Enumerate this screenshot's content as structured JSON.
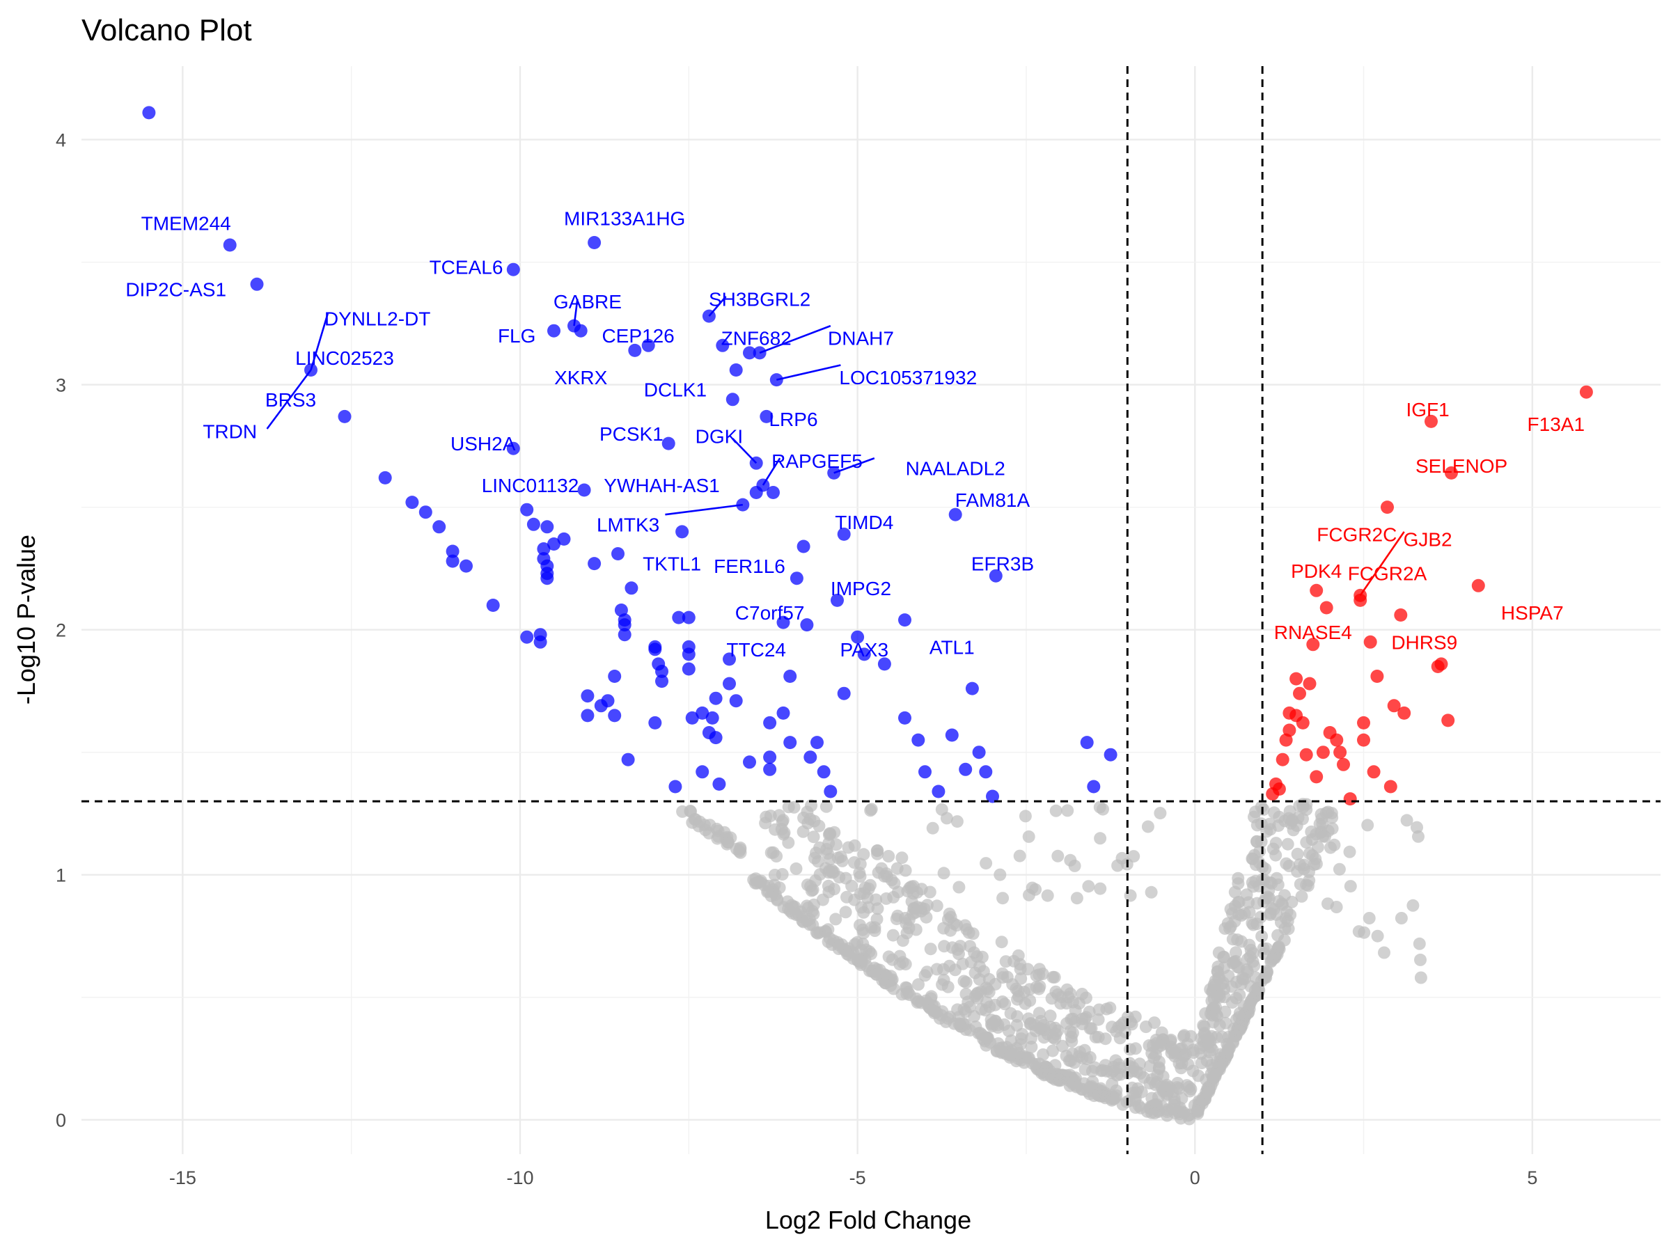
{
  "chart_data": {
    "type": "scatter",
    "title": "Volcano Plot",
    "xlabel": "Log2 Fold Change",
    "ylabel": "-Log10 P-value",
    "xlim": [
      -16.5,
      6.9
    ],
    "ylim": [
      -0.14,
      4.3
    ],
    "x_ticks": [
      -15,
      -10,
      -5,
      0,
      5
    ],
    "y_ticks": [
      0,
      1,
      2,
      3,
      4
    ],
    "grid": true,
    "legend": "none",
    "thresholds": {
      "fold_change": [
        -1,
        1
      ],
      "p_value": 1.3
    },
    "colors": {
      "down": "#0000ff",
      "up": "#ff0000",
      "ns": "#bebebe",
      "threshold_line": "#000000"
    },
    "series": [
      {
        "name": "",
        "color": "#0000ff",
        "points": [
          [
            -15.5,
            4.11
          ],
          [
            -14.3,
            3.57
          ],
          [
            -13.9,
            3.41
          ],
          [
            -13.1,
            3.06
          ],
          [
            -12.6,
            2.87
          ],
          [
            -12.0,
            2.62
          ],
          [
            -11.6,
            2.52
          ],
          [
            -11.4,
            2.48
          ],
          [
            -11.2,
            2.42
          ],
          [
            -11.0,
            2.32
          ],
          [
            -11.0,
            2.28
          ],
          [
            -10.8,
            2.26
          ],
          [
            -10.4,
            2.1
          ],
          [
            -10.1,
            3.47
          ],
          [
            -10.1,
            2.74
          ],
          [
            -9.9,
            2.49
          ],
          [
            -9.9,
            1.97
          ],
          [
            -9.8,
            2.43
          ],
          [
            -9.7,
            1.98
          ],
          [
            -9.7,
            1.95
          ],
          [
            -9.65,
            2.33
          ],
          [
            -9.65,
            2.29
          ],
          [
            -9.6,
            2.26
          ],
          [
            -9.6,
            2.23
          ],
          [
            -9.6,
            2.21
          ],
          [
            -9.6,
            2.42
          ],
          [
            -9.5,
            3.22
          ],
          [
            -9.5,
            2.35
          ],
          [
            -9.35,
            2.37
          ],
          [
            -9.2,
            3.24
          ],
          [
            -9.1,
            3.22
          ],
          [
            -9.05,
            2.57
          ],
          [
            -9.0,
            1.73
          ],
          [
            -9.0,
            1.65
          ],
          [
            -8.9,
            3.58
          ],
          [
            -8.9,
            2.27
          ],
          [
            -8.8,
            1.69
          ],
          [
            -8.7,
            1.71
          ],
          [
            -8.6,
            1.81
          ],
          [
            -8.6,
            1.65
          ],
          [
            -8.55,
            2.31
          ],
          [
            -8.5,
            2.08
          ],
          [
            -8.45,
            2.04
          ],
          [
            -8.45,
            2.02
          ],
          [
            -8.45,
            1.98
          ],
          [
            -8.4,
            1.47
          ],
          [
            -8.35,
            2.17
          ],
          [
            -8.3,
            3.14
          ],
          [
            -8.1,
            3.16
          ],
          [
            -8.0,
            1.93
          ],
          [
            -8.0,
            1.92
          ],
          [
            -8.0,
            1.62
          ],
          [
            -7.95,
            1.86
          ],
          [
            -7.9,
            1.83
          ],
          [
            -7.9,
            1.79
          ],
          [
            -7.8,
            2.76
          ],
          [
            -7.7,
            1.36
          ],
          [
            -7.65,
            2.05
          ],
          [
            -7.6,
            2.4
          ],
          [
            -7.5,
            2.05
          ],
          [
            -7.5,
            1.93
          ],
          [
            -7.5,
            1.9
          ],
          [
            -7.5,
            1.84
          ],
          [
            -7.45,
            1.64
          ],
          [
            -7.3,
            1.42
          ],
          [
            -7.3,
            1.66
          ],
          [
            -7.2,
            3.28
          ],
          [
            -7.2,
            1.58
          ],
          [
            -7.15,
            1.64
          ],
          [
            -7.1,
            1.72
          ],
          [
            -7.1,
            1.56
          ],
          [
            -7.05,
            1.37
          ],
          [
            -7.0,
            3.16
          ],
          [
            -6.9,
            1.88
          ],
          [
            -6.9,
            1.78
          ],
          [
            -6.85,
            2.94
          ],
          [
            -6.8,
            3.06
          ],
          [
            -6.8,
            1.71
          ],
          [
            -6.7,
            2.51
          ],
          [
            -6.6,
            3.13
          ],
          [
            -6.6,
            1.46
          ],
          [
            -6.5,
            2.68
          ],
          [
            -6.5,
            2.56
          ],
          [
            -6.45,
            3.13
          ],
          [
            -6.4,
            2.59
          ],
          [
            -6.35,
            2.87
          ],
          [
            -6.3,
            1.62
          ],
          [
            -6.3,
            1.48
          ],
          [
            -6.3,
            1.43
          ],
          [
            -6.25,
            2.56
          ],
          [
            -6.2,
            3.02
          ],
          [
            -6.1,
            2.03
          ],
          [
            -6.1,
            1.66
          ],
          [
            -6.0,
            1.81
          ],
          [
            -6.0,
            1.54
          ],
          [
            -5.9,
            2.21
          ],
          [
            -5.8,
            2.34
          ],
          [
            -5.75,
            2.02
          ],
          [
            -5.7,
            1.48
          ],
          [
            -5.6,
            1.54
          ],
          [
            -5.5,
            1.42
          ],
          [
            -5.4,
            1.34
          ],
          [
            -5.35,
            2.64
          ],
          [
            -5.3,
            2.12
          ],
          [
            -5.2,
            1.74
          ],
          [
            -5.2,
            2.39
          ],
          [
            -5.0,
            1.97
          ],
          [
            -4.9,
            1.9
          ],
          [
            -4.6,
            1.86
          ],
          [
            -4.3,
            2.04
          ],
          [
            -4.3,
            1.64
          ],
          [
            -4.1,
            1.55
          ],
          [
            -4.0,
            1.42
          ],
          [
            -3.8,
            1.34
          ],
          [
            -3.6,
            1.57
          ],
          [
            -3.55,
            2.47
          ],
          [
            -3.4,
            1.43
          ],
          [
            -3.3,
            1.76
          ],
          [
            -3.2,
            1.5
          ],
          [
            -3.1,
            1.42
          ],
          [
            -3.0,
            1.32
          ],
          [
            -2.95,
            2.22
          ],
          [
            -1.6,
            1.54
          ],
          [
            -1.5,
            1.36
          ],
          [
            -1.25,
            1.49
          ]
        ]
      },
      {
        "name": "",
        "color": "#ff0000",
        "points": [
          [
            1.15,
            1.33
          ],
          [
            1.2,
            1.37
          ],
          [
            1.25,
            1.35
          ],
          [
            1.3,
            1.47
          ],
          [
            1.35,
            1.55
          ],
          [
            1.4,
            1.59
          ],
          [
            1.4,
            1.66
          ],
          [
            1.5,
            1.8
          ],
          [
            1.5,
            1.65
          ],
          [
            1.55,
            1.74
          ],
          [
            1.6,
            1.62
          ],
          [
            1.65,
            1.49
          ],
          [
            1.7,
            1.78
          ],
          [
            1.75,
            1.94
          ],
          [
            1.8,
            2.16
          ],
          [
            1.8,
            1.4
          ],
          [
            1.9,
            1.5
          ],
          [
            1.95,
            2.09
          ],
          [
            2.0,
            1.58
          ],
          [
            2.1,
            1.55
          ],
          [
            2.15,
            1.5
          ],
          [
            2.2,
            1.45
          ],
          [
            2.3,
            1.31
          ],
          [
            2.45,
            2.14
          ],
          [
            2.45,
            2.12
          ],
          [
            2.5,
            1.62
          ],
          [
            2.5,
            1.55
          ],
          [
            2.6,
            1.95
          ],
          [
            2.65,
            1.42
          ],
          [
            2.7,
            1.81
          ],
          [
            2.85,
            2.5
          ],
          [
            2.9,
            1.36
          ],
          [
            2.95,
            1.69
          ],
          [
            3.05,
            2.06
          ],
          [
            3.1,
            1.66
          ],
          [
            3.5,
            2.85
          ],
          [
            3.6,
            1.85
          ],
          [
            3.65,
            1.86
          ],
          [
            3.75,
            1.63
          ],
          [
            3.8,
            2.64
          ],
          [
            4.2,
            2.18
          ],
          [
            5.8,
            2.97
          ]
        ]
      }
    ],
    "labels": [
      {
        "text": "TMEM244",
        "x": -14.3,
        "y": 3.57,
        "color": "#0000ff",
        "tx": -14.95,
        "ty": 3.66,
        "anchor": "middle"
      },
      {
        "text": "DIP2C-AS1",
        "x": -13.9,
        "y": 3.41,
        "color": "#0000ff",
        "tx": -15.1,
        "ty": 3.39,
        "anchor": "middle"
      },
      {
        "text": "DYNLL2-DT",
        "x": -13.1,
        "y": 3.06,
        "color": "#0000ff",
        "tx": -12.9,
        "ty": 3.27,
        "anchor": "start",
        "line": [
          -12.85,
          3.29
        ]
      },
      {
        "text": "LINC02523",
        "x": -13.1,
        "y": 3.06,
        "color": "#0000ff",
        "tx": -12.6,
        "ty": 3.11,
        "anchor": "middle"
      },
      {
        "text": "BRS3",
        "x": -13.1,
        "y": 3.06,
        "color": "#0000ff",
        "tx": -13.4,
        "ty": 2.94,
        "anchor": "middle"
      },
      {
        "text": "TRDN",
        "x": -13.1,
        "y": 3.06,
        "color": "#0000ff",
        "tx": -14.3,
        "ty": 2.81,
        "anchor": "middle",
        "line": [
          -13.75,
          2.82
        ]
      },
      {
        "text": "TCEAL6",
        "x": -10.1,
        "y": 3.47,
        "color": "#0000ff",
        "tx": -10.8,
        "ty": 3.48,
        "anchor": "middle"
      },
      {
        "text": "MIR133A1HG",
        "x": -8.9,
        "y": 3.58,
        "color": "#0000ff",
        "tx": -8.45,
        "ty": 3.68,
        "anchor": "middle"
      },
      {
        "text": "GABRE",
        "x": -9.2,
        "y": 3.24,
        "color": "#0000ff",
        "tx": -9.0,
        "ty": 3.34,
        "anchor": "middle",
        "line": [
          -9.15,
          3.35
        ]
      },
      {
        "text": "FLG",
        "x": -9.5,
        "y": 3.22,
        "color": "#0000ff",
        "tx": -10.05,
        "ty": 3.2,
        "anchor": "middle"
      },
      {
        "text": "CEP126",
        "x": -8.8,
        "y": 3.22,
        "color": "#0000ff",
        "tx": -8.25,
        "ty": 3.2,
        "anchor": "middle"
      },
      {
        "text": "XKRX",
        "x": -8.6,
        "y": 3.14,
        "color": "#0000ff",
        "tx": -9.1,
        "ty": 3.03,
        "anchor": "middle"
      },
      {
        "text": "SH3BGRL2",
        "x": -7.2,
        "y": 3.28,
        "color": "#0000ff",
        "tx": -6.45,
        "ty": 3.35,
        "anchor": "middle",
        "line": [
          -6.95,
          3.36
        ]
      },
      {
        "text": "ZNF682",
        "x": -6.6,
        "y": 3.13,
        "color": "#0000ff",
        "tx": -6.5,
        "ty": 3.19,
        "anchor": "middle"
      },
      {
        "text": "DNAH7",
        "x": -6.45,
        "y": 3.13,
        "color": "#0000ff",
        "tx": -4.95,
        "ty": 3.19,
        "anchor": "middle",
        "line": [
          -5.4,
          3.24
        ]
      },
      {
        "text": "DCLK1",
        "x": -6.8,
        "y": 3.06,
        "color": "#0000ff",
        "tx": -7.7,
        "ty": 2.98,
        "anchor": "middle"
      },
      {
        "text": "LOC105371932",
        "x": -6.2,
        "y": 3.02,
        "color": "#0000ff",
        "tx": -4.25,
        "ty": 3.03,
        "anchor": "middle",
        "line": [
          -5.25,
          3.08
        ]
      },
      {
        "text": "LRP6",
        "x": -6.35,
        "y": 2.87,
        "color": "#0000ff",
        "tx": -5.95,
        "ty": 2.86,
        "anchor": "middle"
      },
      {
        "text": "PCSK1",
        "x": -7.8,
        "y": 2.76,
        "color": "#0000ff",
        "tx": -8.35,
        "ty": 2.8,
        "anchor": "middle"
      },
      {
        "text": "DGKI",
        "x": -6.5,
        "y": 2.68,
        "color": "#0000ff",
        "tx": -7.05,
        "ty": 2.79,
        "anchor": "middle",
        "line": [
          -6.85,
          2.78
        ]
      },
      {
        "text": "USH2A",
        "x": -10.1,
        "y": 2.74,
        "color": "#0000ff",
        "tx": -10.55,
        "ty": 2.76,
        "anchor": "middle"
      },
      {
        "text": "RAPGEF5",
        "x": -6.4,
        "y": 2.59,
        "color": "#0000ff",
        "tx": -5.6,
        "ty": 2.69,
        "anchor": "middle",
        "line": [
          -6.15,
          2.7
        ]
      },
      {
        "text": "NAALADL2",
        "x": -5.35,
        "y": 2.64,
        "color": "#0000ff",
        "tx": -3.55,
        "ty": 2.66,
        "anchor": "middle",
        "line": [
          -4.75,
          2.7
        ]
      },
      {
        "text": "LINC01132",
        "x": -9.05,
        "y": 2.57,
        "color": "#0000ff",
        "tx": -9.85,
        "ty": 2.59,
        "anchor": "middle"
      },
      {
        "text": "YWHAH-AS1",
        "x": -6.5,
        "y": 2.56,
        "color": "#0000ff",
        "tx": -7.9,
        "ty": 2.59,
        "anchor": "middle"
      },
      {
        "text": "FAM81A",
        "x": -3.55,
        "y": 2.47,
        "color": "#0000ff",
        "tx": -3.0,
        "ty": 2.53,
        "anchor": "middle"
      },
      {
        "text": "LMTK3",
        "x": -6.7,
        "y": 2.51,
        "color": "#0000ff",
        "tx": -8.4,
        "ty": 2.43,
        "anchor": "middle",
        "line": [
          -7.85,
          2.47
        ]
      },
      {
        "text": "TIMD4",
        "x": -5.2,
        "y": 2.39,
        "color": "#0000ff",
        "tx": -4.9,
        "ty": 2.44,
        "anchor": "middle"
      },
      {
        "text": "TKTL1",
        "x": -7.6,
        "y": 2.4,
        "color": "#0000ff",
        "tx": -7.75,
        "ty": 2.27,
        "anchor": "middle"
      },
      {
        "text": "FER1L6",
        "x": -6.6,
        "y": 2.25,
        "color": "#0000ff",
        "tx": -6.6,
        "ty": 2.26,
        "anchor": "middle"
      },
      {
        "text": "EFR3B",
        "x": -2.95,
        "y": 2.22,
        "color": "#0000ff",
        "tx": -2.85,
        "ty": 2.27,
        "anchor": "middle"
      },
      {
        "text": "IMPG2",
        "x": -5.3,
        "y": 2.12,
        "color": "#0000ff",
        "tx": -4.95,
        "ty": 2.17,
        "anchor": "middle"
      },
      {
        "text": "C7orf57",
        "x": -6.1,
        "y": 2.03,
        "color": "#0000ff",
        "tx": -6.3,
        "ty": 2.07,
        "anchor": "middle"
      },
      {
        "text": "ATL1",
        "x": -4.3,
        "y": 2.04,
        "color": "#0000ff",
        "tx": -3.6,
        "ty": 1.93,
        "anchor": "middle"
      },
      {
        "text": "TTC24",
        "x": -6.9,
        "y": 1.88,
        "color": "#0000ff",
        "tx": -6.5,
        "ty": 1.92,
        "anchor": "middle"
      },
      {
        "text": "PAX3",
        "x": -5.0,
        "y": 1.97,
        "color": "#0000ff",
        "tx": -4.9,
        "ty": 1.92,
        "anchor": "middle"
      },
      {
        "text": "IGF1",
        "x": 3.5,
        "y": 2.85,
        "color": "#ff0000",
        "tx": 3.45,
        "ty": 2.9,
        "anchor": "middle"
      },
      {
        "text": "F13A1",
        "x": 5.8,
        "y": 2.97,
        "color": "#ff0000",
        "tx": 5.35,
        "ty": 2.84,
        "anchor": "middle"
      },
      {
        "text": "SELENOP",
        "x": 3.8,
        "y": 2.64,
        "color": "#ff0000",
        "tx": 3.95,
        "ty": 2.67,
        "anchor": "middle"
      },
      {
        "text": "FCGR2C",
        "x": 2.85,
        "y": 2.5,
        "color": "#ff0000",
        "tx": 2.4,
        "ty": 2.39,
        "anchor": "middle"
      },
      {
        "text": "GJB2",
        "x": 2.45,
        "y": 2.14,
        "color": "#ff0000",
        "tx": 3.45,
        "ty": 2.37,
        "anchor": "middle",
        "line": [
          3.1,
          2.4
        ]
      },
      {
        "text": "PDK4",
        "x": 1.8,
        "y": 2.16,
        "color": "#ff0000",
        "tx": 1.8,
        "ty": 2.24,
        "anchor": "middle"
      },
      {
        "text": "FCGR2A",
        "x": 2.45,
        "y": 2.12,
        "color": "#ff0000",
        "tx": 2.85,
        "ty": 2.23,
        "anchor": "middle"
      },
      {
        "text": "HSPA7",
        "x": 4.2,
        "y": 2.18,
        "color": "#ff0000",
        "tx": 5.0,
        "ty": 2.07,
        "anchor": "middle"
      },
      {
        "text": "RNASE4",
        "x": 1.75,
        "y": 1.94,
        "color": "#ff0000",
        "tx": 1.75,
        "ty": 1.99,
        "anchor": "middle"
      },
      {
        "text": "DHRS9",
        "x": 3.1,
        "y": 1.66,
        "color": "#ff0000",
        "tx": 3.4,
        "ty": 1.95,
        "anchor": "middle"
      }
    ]
  }
}
